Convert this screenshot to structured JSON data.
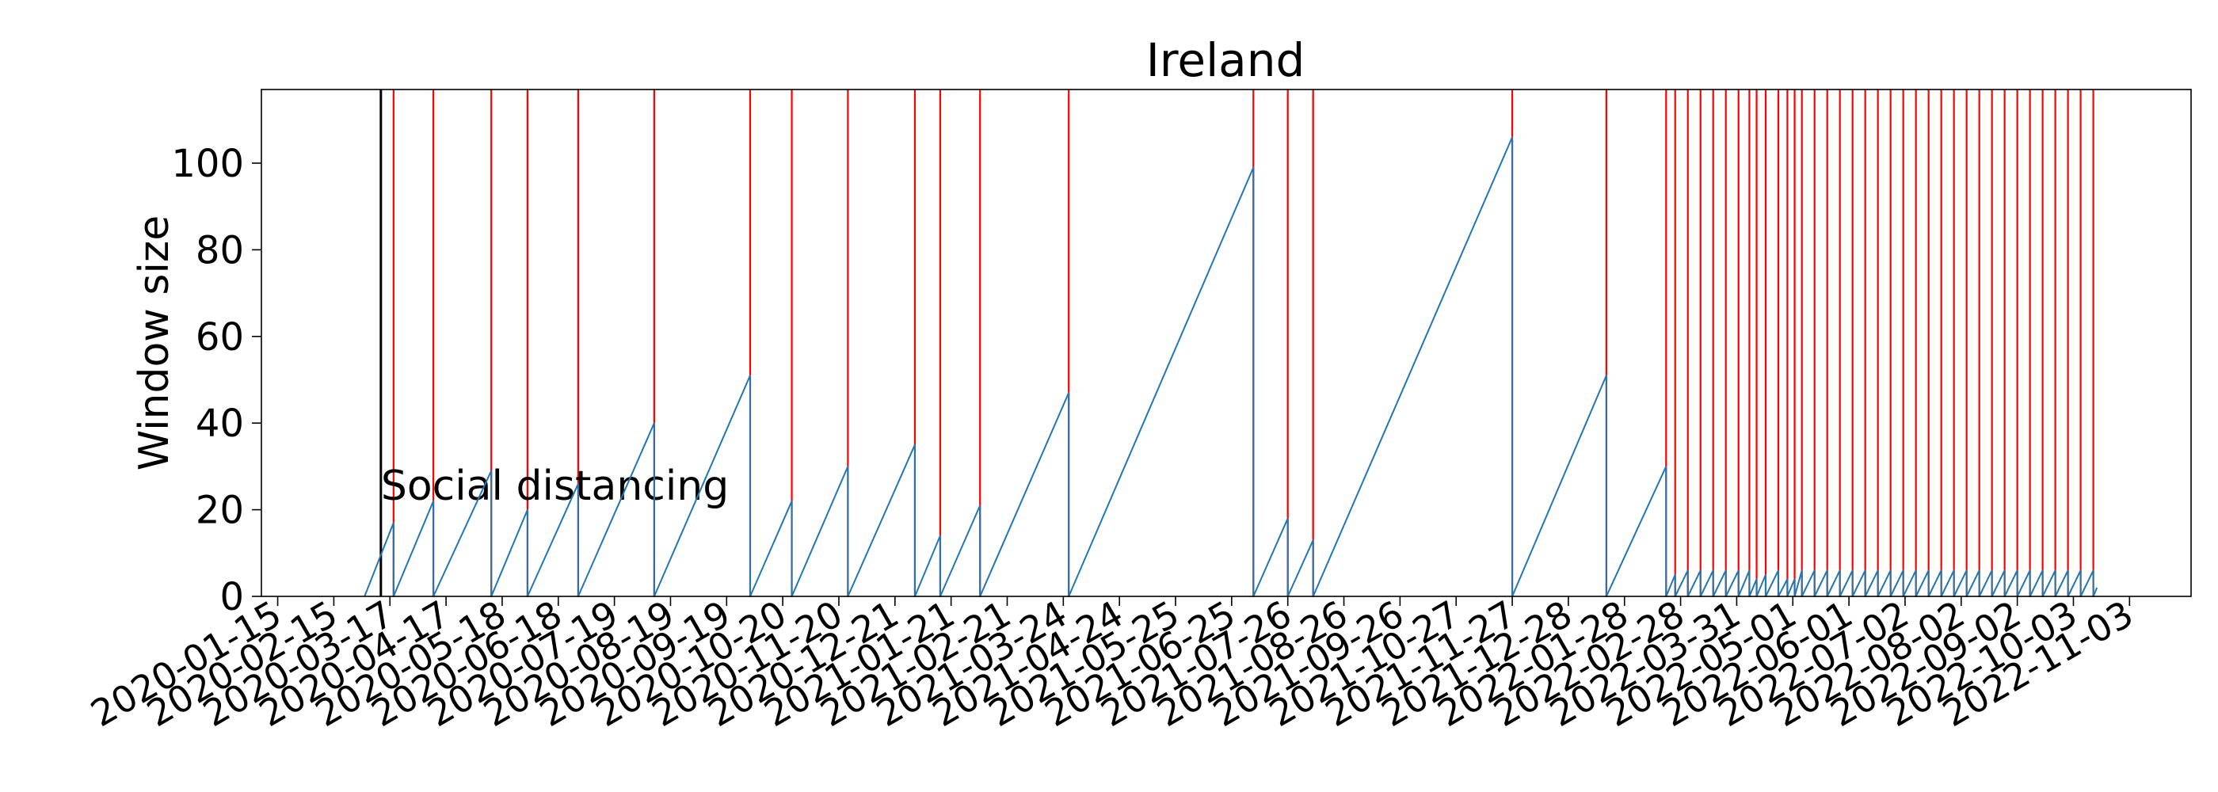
{
  "chart_data": {
    "type": "line",
    "title": "Ireland",
    "xlabel": "",
    "ylabel": "Window size",
    "x_tick_labels": [
      "2020-01-15",
      "2020-02-15",
      "2020-03-17",
      "2020-04-17",
      "2020-05-18",
      "2020-06-18",
      "2020-07-19",
      "2020-08-19",
      "2020-09-19",
      "2020-10-20",
      "2020-11-20",
      "2020-12-21",
      "2021-01-21",
      "2021-02-21",
      "2021-03-24",
      "2021-04-24",
      "2021-05-25",
      "2021-06-25",
      "2021-07-26",
      "2021-08-26",
      "2021-09-26",
      "2021-10-27",
      "2021-11-27",
      "2021-12-28",
      "2022-01-28",
      "2022-02-28",
      "2022-03-31",
      "2022-05-01",
      "2022-06-01",
      "2022-07-02",
      "2022-08-02",
      "2022-09-02",
      "2022-10-03",
      "2022-11-03"
    ],
    "xlim": [
      "2020-01-06",
      "2022-12-07"
    ],
    "y_ticks": [
      0,
      20,
      40,
      60,
      80,
      100
    ],
    "ylim": [
      0,
      117
    ],
    "grid": false,
    "annotations": [
      {
        "text": "Social distancing",
        "x": "2020-03-12",
        "y": 26,
        "line_color": "#000000",
        "line_x": "2020-03-12"
      }
    ],
    "change_points": [
      "2020-03-19",
      "2020-04-10",
      "2020-05-12",
      "2020-06-01",
      "2020-06-29",
      "2020-08-10",
      "2020-10-02",
      "2020-10-25",
      "2020-11-25",
      "2021-01-01",
      "2021-01-15",
      "2021-02-06",
      "2021-03-27",
      "2021-07-07",
      "2021-07-26",
      "2021-08-09",
      "2021-11-27",
      "2022-01-18",
      "2022-02-20",
      "2022-02-25",
      "2022-03-04",
      "2022-03-11",
      "2022-03-18",
      "2022-03-25",
      "2022-04-01",
      "2022-04-07",
      "2022-04-11",
      "2022-04-16",
      "2022-04-23",
      "2022-04-28",
      "2022-05-02",
      "2022-05-06",
      "2022-05-13",
      "2022-05-20",
      "2022-05-27",
      "2022-06-03",
      "2022-06-10",
      "2022-06-17",
      "2022-06-24",
      "2022-07-01",
      "2022-07-08",
      "2022-07-15",
      "2022-07-22",
      "2022-07-29",
      "2022-08-05",
      "2022-08-12",
      "2022-08-19",
      "2022-08-26",
      "2022-09-02",
      "2022-09-09",
      "2022-09-16",
      "2022-09-23",
      "2022-09-30",
      "2022-10-07",
      "2022-10-14"
    ],
    "colors": {
      "series": "#1f77b4",
      "change_point": "#ff0000",
      "annotation_line": "#000000"
    },
    "series": [
      {
        "x": [
          "2020-03-03",
          "2020-03-19",
          "2020-03-19",
          "2020-04-10",
          "2020-04-10",
          "2020-05-12",
          "2020-05-12",
          "2020-06-01",
          "2020-06-01",
          "2020-06-29",
          "2020-06-29",
          "2020-08-10",
          "2020-08-10",
          "2020-10-02",
          "2020-10-02",
          "2020-10-25",
          "2020-10-25",
          "2020-11-25",
          "2020-11-25",
          "2021-01-01",
          "2021-01-01",
          "2021-01-15",
          "2021-01-15",
          "2021-02-06",
          "2021-02-06",
          "2021-03-27",
          "2021-03-27",
          "2021-07-07",
          "2021-07-07",
          "2021-07-26",
          "2021-07-26",
          "2021-08-09",
          "2021-08-09",
          "2021-11-27",
          "2021-11-27",
          "2022-01-18",
          "2022-01-18",
          "2022-02-20",
          "2022-02-20",
          "2022-02-25",
          "2022-02-25",
          "2022-03-04",
          "2022-03-04",
          "2022-03-11",
          "2022-03-11",
          "2022-03-18",
          "2022-03-18",
          "2022-03-25",
          "2022-03-25",
          "2022-04-01",
          "2022-04-01",
          "2022-04-07",
          "2022-04-07",
          "2022-04-11",
          "2022-04-11",
          "2022-04-16",
          "2022-04-16",
          "2022-04-23",
          "2022-04-23",
          "2022-04-28",
          "2022-04-28",
          "2022-05-02",
          "2022-05-02",
          "2022-05-06",
          "2022-05-06",
          "2022-05-13",
          "2022-05-13",
          "2022-05-20",
          "2022-05-20",
          "2022-05-27",
          "2022-05-27",
          "2022-06-03",
          "2022-06-03",
          "2022-06-10",
          "2022-06-10",
          "2022-06-17",
          "2022-06-17",
          "2022-06-24",
          "2022-06-24",
          "2022-07-01",
          "2022-07-01",
          "2022-07-08",
          "2022-07-08",
          "2022-07-15",
          "2022-07-15",
          "2022-07-22",
          "2022-07-22",
          "2022-07-29",
          "2022-07-29",
          "2022-08-05",
          "2022-08-05",
          "2022-08-12",
          "2022-08-12",
          "2022-08-19",
          "2022-08-19",
          "2022-08-26",
          "2022-08-26",
          "2022-09-02",
          "2022-09-02",
          "2022-09-09",
          "2022-09-09",
          "2022-09-16",
          "2022-09-16",
          "2022-09-23",
          "2022-09-23",
          "2022-09-30",
          "2022-09-30",
          "2022-10-07",
          "2022-10-07",
          "2022-10-14",
          "2022-10-14",
          "2022-10-16"
        ],
        "y": [
          0,
          17,
          0,
          22,
          0,
          29,
          0,
          20,
          0,
          26,
          0,
          40,
          0,
          51,
          0,
          22,
          0,
          30,
          0,
          35,
          0,
          14,
          0,
          21,
          0,
          47,
          0,
          99,
          0,
          18,
          0,
          13,
          0,
          106,
          0,
          51,
          0,
          30,
          0,
          5,
          0,
          6,
          0,
          6,
          0,
          6,
          0,
          6,
          0,
          6,
          0,
          6,
          0,
          4,
          0,
          5,
          0,
          6,
          0,
          4,
          0,
          4,
          0,
          6,
          0,
          6,
          0,
          6,
          0,
          6,
          0,
          6,
          0,
          6,
          0,
          6,
          0,
          6,
          0,
          6,
          0,
          6,
          0,
          6,
          0,
          6,
          0,
          6,
          0,
          6,
          0,
          6,
          0,
          6,
          0,
          6,
          0,
          6,
          0,
          6,
          0,
          6,
          0,
          6,
          0,
          6,
          0,
          6,
          0,
          6,
          0,
          2
        ]
      }
    ]
  }
}
